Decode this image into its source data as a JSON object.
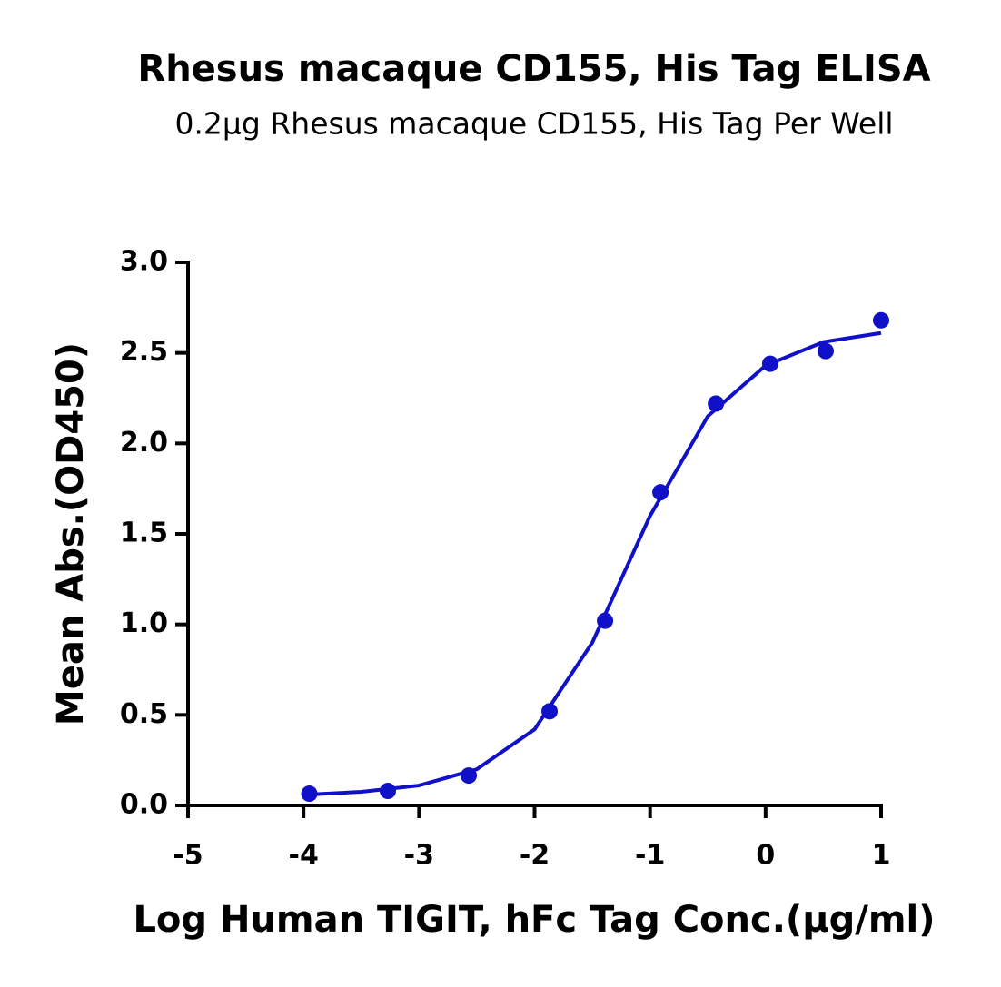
{
  "chart_data": {
    "type": "scatter",
    "title": "Rhesus macaque CD155, His Tag ELISA",
    "subtitle": "0.2μg Rhesus macaque CD155, His Tag Per Well",
    "x_label": "Log Human TIGIT, hFc Tag Conc.(μg/ml)",
    "y_label": "Mean Abs.(OD450)",
    "xlim": [
      -5,
      1
    ],
    "xticks": [
      -5,
      -4,
      -3,
      -2,
      -1,
      0,
      1
    ],
    "ylim": [
      0,
      3
    ],
    "yticks": [
      {
        "value": 0,
        "label": "0.0"
      },
      {
        "value": 0.5,
        "label": "0.5"
      },
      {
        "value": 1,
        "label": "1.0"
      },
      {
        "value": 1.5,
        "label": "1.5"
      },
      {
        "value": 2,
        "label": "2.0"
      },
      {
        "value": 2.5,
        "label": "2.5"
      },
      {
        "value": 3,
        "label": "3.0"
      }
    ],
    "series": [
      {
        "type": "scatter",
        "color": "#1010c8",
        "x": [
          -3.95,
          -3.27,
          -2.57,
          -1.87,
          -1.39,
          -0.91,
          -0.43,
          0.04,
          0.52,
          1.0
        ],
        "values": [
          0.065,
          0.08,
          0.165,
          0.52,
          1.02,
          1.73,
          2.22,
          2.44,
          2.51,
          2.68
        ]
      },
      {
        "type": "line",
        "color": "#1010c8",
        "x": [
          -3.95,
          -3.5,
          -3,
          -2.5,
          -2,
          -1.5,
          -1,
          -0.5,
          0,
          0.5,
          1
        ],
        "values": [
          0.06,
          0.075,
          0.11,
          0.2,
          0.42,
          0.9,
          1.6,
          2.15,
          2.43,
          2.56,
          2.61
        ]
      }
    ]
  }
}
